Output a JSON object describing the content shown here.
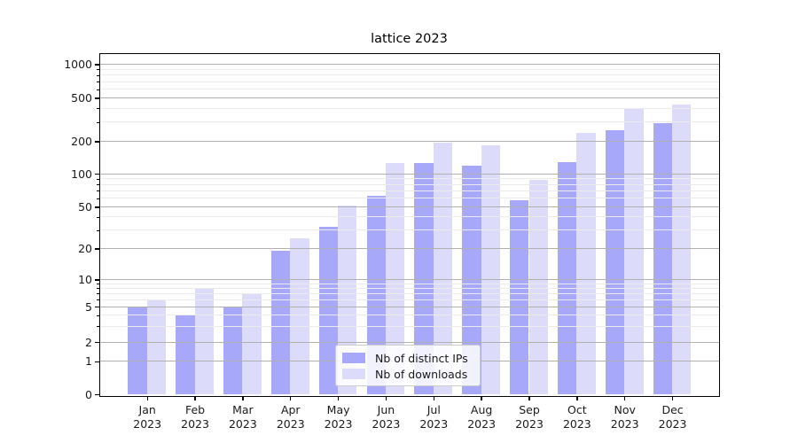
{
  "chart_data": {
    "type": "bar",
    "title": "lattice 2023",
    "categories": [
      "Jan 2023",
      "Feb 2023",
      "Mar 2023",
      "Apr 2023",
      "May 2023",
      "Jun 2023",
      "Jul 2023",
      "Aug 2023",
      "Sep 2023",
      "Oct 2023",
      "Nov 2023",
      "Dec 2023"
    ],
    "series": [
      {
        "name": "Nb of distinct IPs",
        "color": "#a8a8fa",
        "values": [
          5,
          4,
          5,
          19,
          32,
          63,
          126,
          118,
          57,
          128,
          255,
          295
        ]
      },
      {
        "name": "Nb of downloads",
        "color": "#dcdcfa",
        "values": [
          6,
          8,
          7,
          25,
          51,
          125,
          193,
          182,
          88,
          240,
          400,
          435
        ]
      }
    ],
    "yscale": "symlog",
    "yticks": [
      0,
      1,
      2,
      5,
      10,
      20,
      50,
      100,
      200,
      500,
      1000
    ],
    "minor_yticks": [
      3,
      4,
      6,
      7,
      8,
      9,
      30,
      40,
      60,
      70,
      80,
      90,
      300,
      400,
      600,
      700,
      800,
      900
    ],
    "ylim": [
      0,
      1300
    ],
    "xlabel": "",
    "ylabel": "",
    "grid": "both",
    "legend_position": "lower center",
    "colors": {
      "axis": "#000000",
      "major_grid": "#b0b0b0",
      "minor_grid": "#ebebeb",
      "text": "#1a1a1a"
    }
  }
}
